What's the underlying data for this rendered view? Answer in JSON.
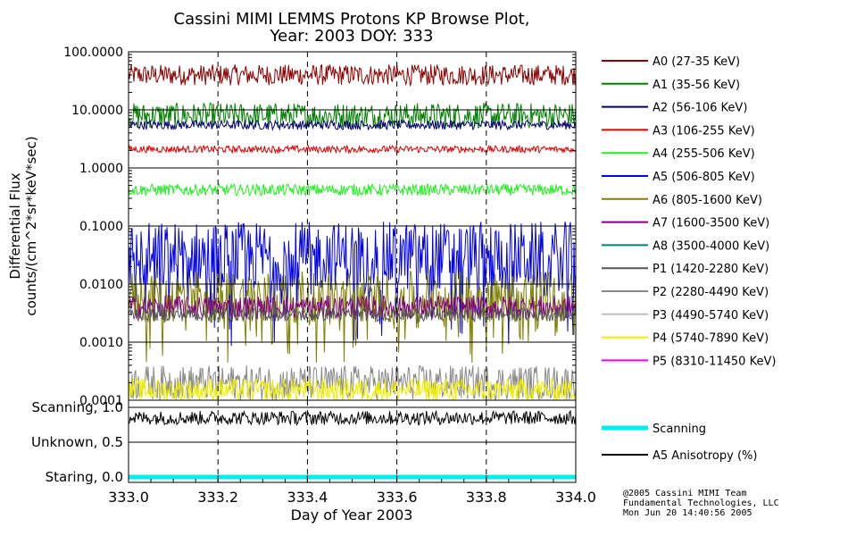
{
  "chart_data": {
    "type": "line",
    "title": "Cassini MIMI LEMMS Protons KP Browse Plot,",
    "subtitle": "Year: 2003 DOY: 333",
    "xlabel": "Day of Year 2003",
    "ylabel_line1": "Differential Flux",
    "ylabel_line2": "counts/(cm^2*sr*keV*sec)",
    "xlim": [
      333.0,
      334.0
    ],
    "ylim": [
      0.0001,
      100.0
    ],
    "yscale": "log",
    "x_ticks": [
      "333.0",
      "333.2",
      "333.4",
      "333.6",
      "333.8",
      "334.0"
    ],
    "y_ticks": [
      {
        "value": 100,
        "label": "100.0000"
      },
      {
        "value": 10,
        "label": "10.0000"
      },
      {
        "value": 1,
        "label": "1.0000"
      },
      {
        "value": 0.1,
        "label": "0.1000"
      },
      {
        "value": 0.01,
        "label": "0.0100"
      },
      {
        "value": 0.001,
        "label": "0.0010"
      },
      {
        "value": 0.0001,
        "label": "0.0001"
      }
    ],
    "grid": true,
    "legend_placement": "right",
    "series": [
      {
        "name": "A0 (27-35 KeV)",
        "color": "#8b0000",
        "level": 40,
        "spread": 0.18
      },
      {
        "name": "A1 (35-56 KeV)",
        "color": "#008000",
        "level": 8,
        "spread": 0.22
      },
      {
        "name": "A2 (56-106 KeV)",
        "color": "#00006e",
        "level": 5.5,
        "spread": 0.08
      },
      {
        "name": "A3 (106-255 KeV)",
        "color": "#dd0000",
        "level": 2.1,
        "spread": 0.06
      },
      {
        "name": "A4 (255-506 KeV)",
        "color": "#22ee22",
        "level": 0.42,
        "spread": 0.1
      },
      {
        "name": "A5 (506-805 KeV)",
        "color": "#0000ee",
        "level": 0.03,
        "spread": 0.6
      },
      {
        "name": "A6 (805-1600 KeV)",
        "color": "#808000",
        "level": 0.006,
        "spread": 0.45
      },
      {
        "name": "A7 (1600-3500 KeV)",
        "color": "#800080",
        "level": 0.004,
        "spread": 0.2
      },
      {
        "name": "A8 (3500-4000 KeV)",
        "color": "#008080",
        "level": null,
        "spread": 0
      },
      {
        "name": "P1 (1420-2280 KeV)",
        "color": "#555555",
        "level": 0.003,
        "spread": 0.12
      },
      {
        "name": "P2 (2280-4490 KeV)",
        "color": "#888888",
        "level": 0.0002,
        "spread": 0.3
      },
      {
        "name": "P3 (4490-5740 KeV)",
        "color": "#c0c0c0",
        "level": null,
        "spread": 0
      },
      {
        "name": "P4 (5740-7890 KeV)",
        "color": "#eeee00",
        "level": 0.00015,
        "spread": 0.2
      },
      {
        "name": "P5 (8310-11450 KeV)",
        "color": "#ee00ee",
        "level": null,
        "spread": 0
      }
    ],
    "lower_panel": {
      "y_ticks": [
        "Scanning, 1.0",
        "Unknown, 0.5",
        "Staring, 0.0"
      ],
      "series": [
        {
          "name": "Scanning",
          "color": "#00eeee",
          "value": 0.0
        },
        {
          "name": "A5 Anisotropy (%)",
          "color": "#000000",
          "value": 0.85,
          "spread": 0.1
        }
      ]
    }
  },
  "credits": {
    "line1": "@2005 Cassini MIMI Team",
    "line2": "Fundamental Technologies, LLC",
    "line3": "Mon Jun 20 14:40:56 2005"
  }
}
